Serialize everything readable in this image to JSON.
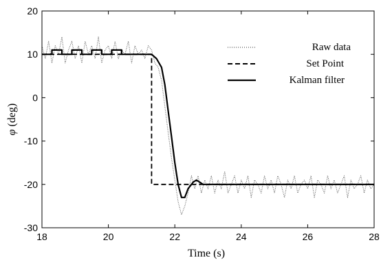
{
  "chart_data": {
    "type": "line",
    "xlabel": "Time (s)",
    "ylabel_symbol": "φ",
    "ylabel_unit": "(deg)",
    "xlim": [
      18,
      28
    ],
    "ylim": [
      -30,
      20
    ],
    "xticks": [
      18,
      20,
      22,
      24,
      26,
      28
    ],
    "yticks": [
      20,
      10,
      0,
      -10,
      -20,
      -30
    ],
    "grid": false,
    "legend_position": "top-right",
    "series": [
      {
        "name": "Raw data",
        "style": "dotted",
        "color": "#555555",
        "x": [
          18.0,
          18.1,
          18.2,
          18.3,
          18.4,
          18.5,
          18.6,
          18.7,
          18.8,
          18.9,
          19.0,
          19.1,
          19.2,
          19.3,
          19.4,
          19.5,
          19.6,
          19.7,
          19.8,
          19.9,
          20.0,
          20.1,
          20.2,
          20.3,
          20.4,
          20.5,
          20.6,
          20.7,
          20.8,
          20.9,
          21.0,
          21.1,
          21.2,
          21.3,
          21.4,
          21.5,
          21.6,
          21.7,
          21.8,
          21.9,
          22.0,
          22.1,
          22.2,
          22.3,
          22.4,
          22.5,
          22.6,
          22.7,
          22.8,
          22.9,
          23.0,
          23.1,
          23.2,
          23.3,
          23.4,
          23.5,
          23.6,
          23.7,
          23.8,
          23.9,
          24.0,
          24.1,
          24.2,
          24.3,
          24.4,
          24.5,
          24.6,
          24.7,
          24.8,
          24.9,
          25.0,
          25.1,
          25.2,
          25.3,
          25.4,
          25.5,
          25.6,
          25.7,
          25.8,
          25.9,
          26.0,
          26.1,
          26.2,
          26.3,
          26.4,
          26.5,
          26.6,
          26.7,
          26.8,
          26.9,
          27.0,
          27.1,
          27.2,
          27.3,
          27.4,
          27.5,
          27.6,
          27.7,
          27.8,
          27.9,
          28.0
        ],
        "y": [
          12,
          9,
          13,
          8,
          12,
          10,
          14,
          8,
          11,
          13,
          9,
          12,
          8,
          13,
          10,
          12,
          9,
          14,
          8,
          11,
          12,
          9,
          13,
          9,
          11,
          10,
          13,
          8,
          12,
          10,
          11,
          9,
          12,
          11,
          8,
          7,
          4,
          -2,
          -8,
          -14,
          -19,
          -24,
          -27,
          -25,
          -22,
          -18,
          -21,
          -18,
          -22,
          -19,
          -21,
          -18,
          -22,
          -19,
          -21,
          -17,
          -22,
          -20,
          -18,
          -22,
          -19,
          -21,
          -18,
          -23,
          -19,
          -20,
          -22,
          -18,
          -21,
          -19,
          -22,
          -18,
          -20,
          -23,
          -19,
          -21,
          -18,
          -22,
          -20,
          -19,
          -21,
          -18,
          -23,
          -19,
          -20,
          -22,
          -18,
          -21,
          -19,
          -22,
          -20,
          -18,
          -23,
          -19,
          -21,
          -20,
          -18,
          -22,
          -19,
          -21,
          -20
        ]
      },
      {
        "name": "Set Point",
        "style": "dashed",
        "color": "#000000",
        "x": [
          18,
          21.3,
          21.3,
          28
        ],
        "y": [
          10,
          10,
          -20,
          -20
        ]
      },
      {
        "name": "Kalman filter",
        "style": "solid",
        "color": "#000000",
        "x": [
          18.0,
          18.3,
          18.3,
          18.6,
          18.6,
          18.9,
          18.9,
          19.2,
          19.2,
          19.5,
          19.5,
          19.8,
          19.8,
          20.1,
          20.1,
          20.4,
          20.4,
          20.7,
          20.7,
          21.3,
          21.45,
          21.6,
          21.7,
          21.8,
          21.9,
          22.0,
          22.1,
          22.2,
          22.3,
          22.4,
          22.5,
          22.55,
          22.65,
          22.75,
          22.85,
          23.0,
          24.0,
          25.0,
          26.0,
          27.0,
          28.0
        ],
        "y": [
          10,
          10,
          11,
          11,
          10,
          10,
          11,
          11,
          10,
          10,
          11,
          11,
          10,
          10,
          11,
          11,
          10,
          10,
          10,
          10,
          9,
          7,
          3,
          -3,
          -9,
          -15,
          -20,
          -23,
          -23,
          -21,
          -20,
          -19.5,
          -19,
          -19.5,
          -20,
          -20,
          -20,
          -20,
          -20,
          -20,
          -20
        ]
      }
    ]
  }
}
